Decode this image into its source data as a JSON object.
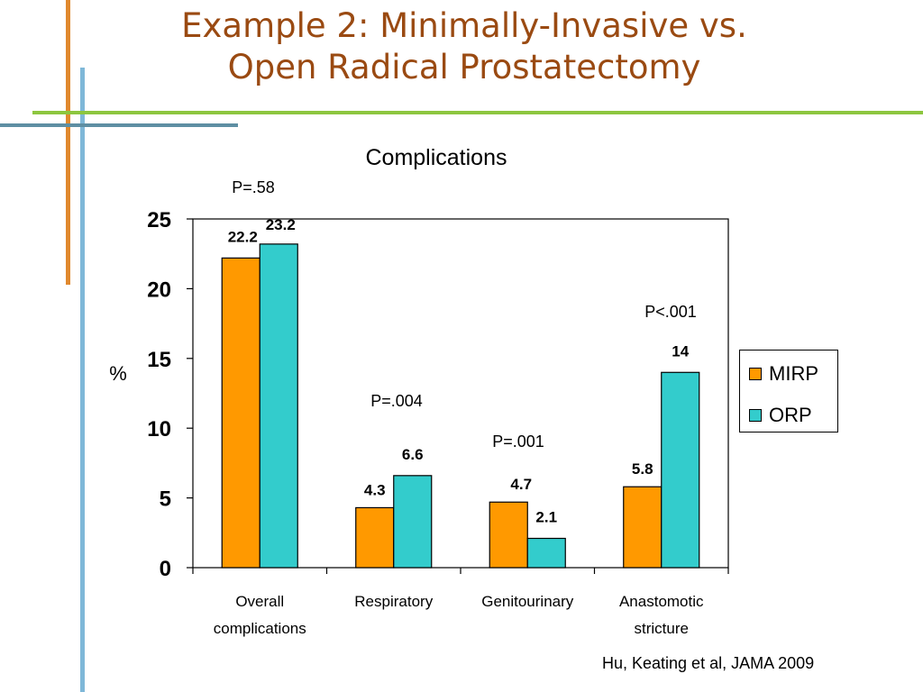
{
  "slide": {
    "title_line1": "Example 2: Minimally-Invasive vs.",
    "title_line2": "Open Radical Prostatectomy",
    "citation": "Hu, Keating et al, JAMA 2009"
  },
  "colors": {
    "mirp": "#ff9900",
    "orp": "#33cccc",
    "title": "#9a4a12"
  },
  "chart_data": {
    "type": "bar",
    "title": "Complications",
    "xlabel": "",
    "ylabel": "%",
    "ylim": [
      0,
      25
    ],
    "yticks": [
      0,
      5,
      10,
      15,
      20,
      25
    ],
    "categories": [
      [
        "Overall",
        "complications"
      ],
      [
        "Respiratory"
      ],
      [
        "Genitourinary"
      ],
      [
        "Anastomotic",
        "stricture"
      ]
    ],
    "series": [
      {
        "name": "MIRP",
        "values": [
          22.2,
          4.3,
          4.7,
          5.8
        ],
        "labels": [
          "22.2",
          "4.3",
          "4.7",
          "5.8"
        ]
      },
      {
        "name": "ORP",
        "values": [
          23.2,
          6.6,
          2.1,
          14
        ],
        "labels": [
          "23.2",
          "6.6",
          "2.1",
          "14"
        ]
      }
    ],
    "pvalues": [
      "P=.58",
      "P=.004",
      "P=.001",
      "P<.001"
    ],
    "grid": false,
    "legend_position": "right"
  }
}
